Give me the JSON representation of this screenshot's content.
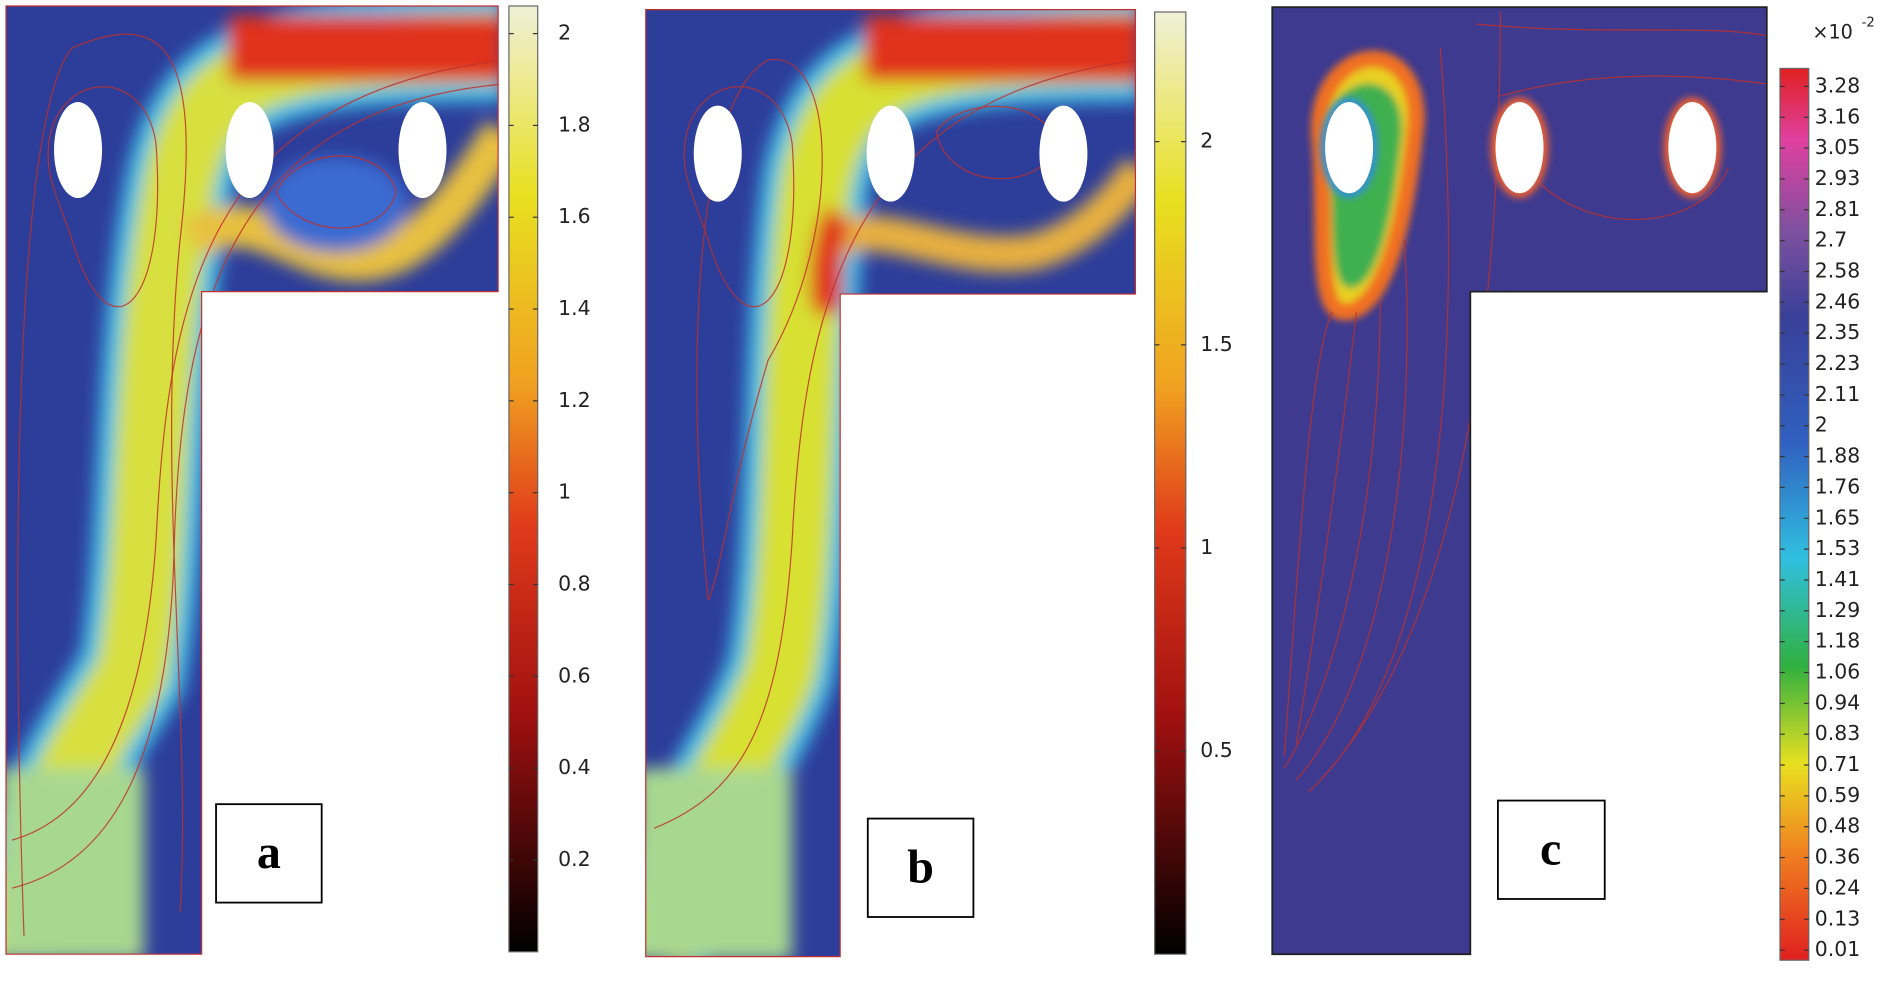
{
  "panels": [
    {
      "label": "a",
      "colorbar": {
        "ticks": [
          "2",
          "1.8",
          "1.6",
          "1.4",
          "1.2",
          "1",
          "0.8",
          "0.6",
          "0.4",
          "0.2"
        ]
      }
    },
    {
      "label": "b",
      "colorbar": {
        "ticks": [
          "2",
          "1.5",
          "1",
          "0.5"
        ]
      }
    },
    {
      "label": "c",
      "colorbar": {
        "multiplier": {
          "base": "×10",
          "exponent": "-2"
        },
        "ticks": [
          "3.28",
          "3.16",
          "3.05",
          "2.93",
          "2.81",
          "2.7",
          "2.58",
          "2.46",
          "2.35",
          "2.23",
          "2.11",
          "2",
          "1.88",
          "1.76",
          "1.65",
          "1.53",
          "1.41",
          "1.29",
          "1.18",
          "1.06",
          "0.94",
          "0.83",
          "0.71",
          "0.59",
          "0.48",
          "0.36",
          "0.24",
          "0.13",
          "0.01"
        ]
      }
    }
  ]
}
